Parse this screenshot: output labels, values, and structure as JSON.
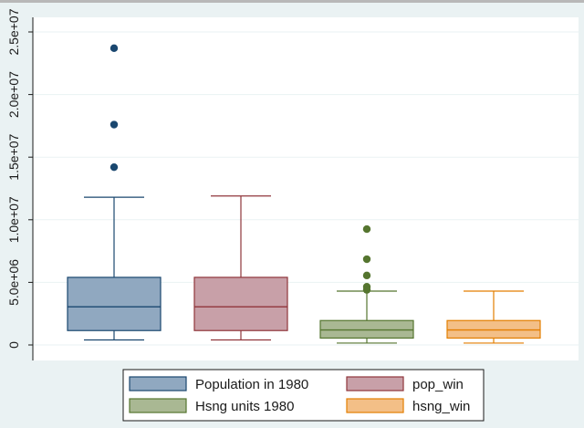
{
  "chart_data": {
    "type": "box",
    "title": "",
    "xlabel": "",
    "ylabel": "",
    "ylim": [
      -1000000,
      26000000
    ],
    "yticks": [
      {
        "value": 0,
        "label": "0"
      },
      {
        "value": 5000000,
        "label": "5.0e+06"
      },
      {
        "value": 10000000,
        "label": "1.0e+07"
      },
      {
        "value": 15000000,
        "label": "1.5e+07"
      },
      {
        "value": 20000000,
        "label": "2.0e+07"
      },
      {
        "value": 25000000,
        "label": "2.5e+07"
      }
    ],
    "grid": "horizontal",
    "legend_position": "bottom",
    "series": [
      {
        "name": "Population in 1980",
        "fill": "#90a8c0",
        "stroke": "#1a476f",
        "whisker_low": 400000,
        "q1": 1150000,
        "median": 3050000,
        "q3": 5400000,
        "whisker_high": 11800000,
        "outliers": [
          14200000,
          17600000,
          23700000
        ]
      },
      {
        "name": "pop_win",
        "fill": "#c8a0a8",
        "stroke": "#90353b",
        "whisker_low": 400000,
        "q1": 1150000,
        "median": 3050000,
        "q3": 5400000,
        "whisker_high": 11900000,
        "outliers": []
      },
      {
        "name": "Hsng units 1980",
        "fill": "#a9b893",
        "stroke": "#55752f",
        "whisker_low": 150000,
        "q1": 550000,
        "median": 1200000,
        "q3": 1950000,
        "whisker_high": 4300000,
        "outliers": [
          4400000,
          4650000,
          5550000,
          6850000,
          9250000
        ]
      },
      {
        "name": "hsng_win",
        "fill": "#f3bf87",
        "stroke": "#e37e00",
        "whisker_low": 150000,
        "q1": 550000,
        "median": 1200000,
        "q3": 1950000,
        "whisker_high": 4300000,
        "outliers": []
      }
    ]
  }
}
